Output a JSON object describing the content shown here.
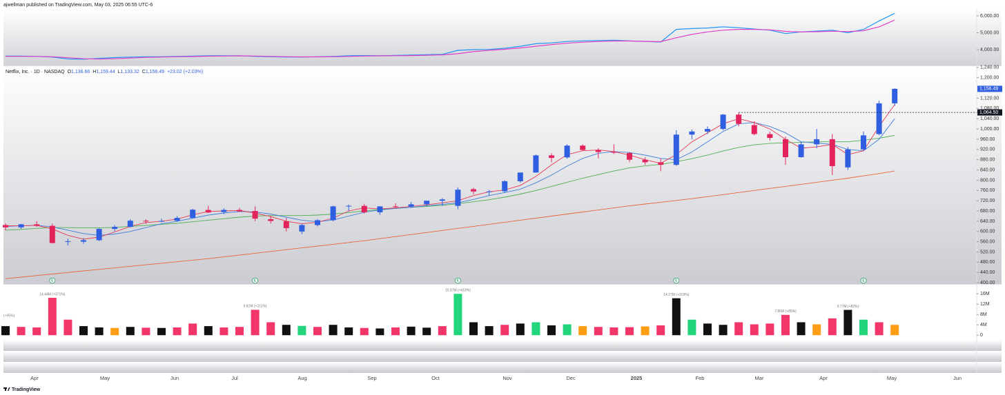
{
  "header": {
    "publisher": "ajwellman published on TradingView.com, May 03, 2025 06:55 UTC-6"
  },
  "footer": {
    "brand": "TradingView"
  },
  "time_axis": [
    "Apr",
    "May",
    "Jun",
    "Jul",
    "Aug",
    "Sep",
    "Oct",
    "Nov",
    "Dec",
    "2025",
    "Feb",
    "Mar",
    "Apr",
    "May",
    "Jun"
  ],
  "chart_data": [
    {
      "type": "line",
      "ylim": [
        3060,
        6450
      ],
      "yticks": [
        {
          "value": 4000,
          "label": "4,000.00"
        },
        {
          "value": 5000,
          "label": "5,000.00"
        },
        {
          "value": 6000,
          "label": "6,000.00"
        }
      ],
      "series": [
        {
          "color": "#2196f3",
          "values": [
            3620,
            3620,
            3600,
            3560,
            3450,
            3430,
            3480,
            3530,
            3560,
            3580,
            3580,
            3600,
            3620,
            3640,
            3640,
            3640,
            3600,
            3580,
            3560,
            3560,
            3580,
            3600,
            3640,
            3650,
            3640,
            3660,
            3680,
            3700,
            3720,
            3960,
            4000,
            4010,
            4080,
            4200,
            4350,
            4400,
            4480,
            4520,
            4540,
            4560,
            4520,
            4480,
            4450,
            5200,
            5250,
            5280,
            5350,
            5300,
            5220,
            5150,
            4950,
            5050,
            5100,
            5150,
            5000,
            5200,
            5700,
            6150
          ]
        },
        {
          "color": "#e040c8",
          "values": [
            3600,
            3600,
            3600,
            3580,
            3520,
            3460,
            3440,
            3460,
            3500,
            3540,
            3560,
            3580,
            3590,
            3610,
            3620,
            3630,
            3620,
            3600,
            3580,
            3570,
            3570,
            3580,
            3600,
            3620,
            3630,
            3640,
            3650,
            3670,
            3690,
            3760,
            3880,
            3960,
            4020,
            4100,
            4200,
            4300,
            4380,
            4440,
            4480,
            4510,
            4510,
            4490,
            4470,
            4700,
            4900,
            5050,
            5150,
            5200,
            5200,
            5170,
            5080,
            5050,
            5060,
            5090,
            5070,
            5120,
            5350,
            5750
          ]
        }
      ]
    },
    {
      "type": "candlestick",
      "legend": {
        "name": "Netflix, Inc. · 1D · NASDAQ",
        "items": [
          {
            "label": "O",
            "value": "1,136.66"
          },
          {
            "label": "H",
            "value": "1,159.44"
          },
          {
            "label": "L",
            "value": "1,133.32"
          },
          {
            "label": "C",
            "value": "1,156.49"
          }
        ],
        "change": "+23.02 (+2.03%)"
      },
      "up_color": "#2f5fe0",
      "down_color": "#e3245c",
      "ylim": [
        395,
        1245
      ],
      "yticks": [
        {
          "value": 400,
          "label": "400.00"
        },
        {
          "value": 440,
          "label": "440.00"
        },
        {
          "value": 480,
          "label": "480.00"
        },
        {
          "value": 520,
          "label": "520.00"
        },
        {
          "value": 560,
          "label": "560.00"
        },
        {
          "value": 600,
          "label": "600.00"
        },
        {
          "value": 640,
          "label": "640.00"
        },
        {
          "value": 680,
          "label": "680.00"
        },
        {
          "value": 720,
          "label": "720.00"
        },
        {
          "value": 760,
          "label": "760.00"
        },
        {
          "value": 800,
          "label": "800.00"
        },
        {
          "value": 840,
          "label": "840.00"
        },
        {
          "value": 880,
          "label": "880.00"
        },
        {
          "value": 920,
          "label": "920.00"
        },
        {
          "value": 960,
          "label": "960.00"
        },
        {
          "value": 1000,
          "label": "1,000.00"
        },
        {
          "value": 1040,
          "label": "1,040.00"
        },
        {
          "value": 1080,
          "label": "1,080.00"
        },
        {
          "value": 1120,
          "label": "1,120.00"
        },
        {
          "value": 1200,
          "label": "1,200.00"
        },
        {
          "value": 1240,
          "label": "1,240.00"
        }
      ],
      "open": [
        625,
        616,
        628,
        622,
        560,
        560,
        566,
        610,
        618,
        642,
        640,
        642,
        653,
        684,
        676,
        684,
        680,
        648,
        640,
        600,
        625,
        644,
        698,
        700,
        675,
        698,
        697,
        706,
        720,
        700,
        765,
        756,
        757,
        796,
        830,
        897,
        889,
        935,
        918,
        910,
        906,
        880,
        870,
        860,
        978,
        990,
        1000,
        1056,
        1015,
        980,
        960,
        890,
        940,
        960,
        850,
        920,
        980,
        1100
      ],
      "high": [
        632,
        630,
        640,
        630,
        572,
        574,
        612,
        625,
        648,
        648,
        650,
        660,
        688,
        700,
        690,
        692,
        698,
        660,
        653,
        630,
        648,
        700,
        705,
        708,
        698,
        710,
        715,
        720,
        730,
        772,
        770,
        762,
        800,
        830,
        900,
        905,
        940,
        940,
        925,
        940,
        910,
        890,
        885,
        995,
        998,
        1010,
        1058,
        1064,
        1030,
        990,
        970,
        950,
        1000,
        980,
        930,
        990,
        1110,
        1159.44
      ],
      "low": [
        605,
        610,
        618,
        553,
        545,
        552,
        563,
        600,
        615,
        630,
        635,
        638,
        652,
        672,
        668,
        676,
        640,
        631,
        600,
        590,
        620,
        640,
        680,
        670,
        665,
        692,
        692,
        700,
        700,
        687,
        745,
        740,
        750,
        790,
        830,
        870,
        884,
        915,
        885,
        902,
        870,
        860,
        835,
        856,
        960,
        980,
        995,
        1010,
        975,
        955,
        860,
        888,
        925,
        820,
        840,
        915,
        975,
        1090
      ],
      "close": [
        616,
        628,
        622,
        555,
        562,
        566,
        610,
        618,
        642,
        641,
        641,
        653,
        685,
        674,
        684,
        678,
        650,
        641,
        613,
        625,
        644,
        698,
        700,
        675,
        698,
        697,
        706,
        720,
        725,
        763,
        756,
        756,
        796,
        830,
        897,
        887,
        935,
        918,
        910,
        909,
        880,
        870,
        860,
        978,
        990,
        1000,
        1056,
        1020,
        980,
        965,
        890,
        940,
        960,
        855,
        920,
        975,
        1100,
        1156.49
      ],
      "lines": [
        {
          "color": "#e8643a",
          "values": [
            416,
            422,
            428,
            434,
            440,
            446,
            452,
            458,
            464,
            470,
            476,
            482,
            488,
            494,
            501,
            508,
            515,
            522,
            529,
            536,
            543,
            550,
            557,
            564,
            572,
            580,
            588,
            596,
            604,
            612,
            620,
            628,
            636,
            644,
            652,
            660,
            668,
            676,
            684,
            692,
            700,
            707,
            714,
            721,
            728,
            736,
            744,
            752,
            760,
            768,
            776,
            784,
            792,
            800,
            808,
            817,
            826,
            836
          ]
        },
        {
          "color": "#4caf50",
          "values": [
            605,
            608,
            612,
            615,
            615,
            614,
            614,
            616,
            620,
            624,
            628,
            632,
            638,
            644,
            650,
            656,
            660,
            662,
            662,
            662,
            664,
            668,
            674,
            680,
            686,
            690,
            694,
            698,
            702,
            708,
            716,
            724,
            734,
            746,
            760,
            776,
            792,
            808,
            822,
            836,
            848,
            856,
            862,
            872,
            884,
            898,
            914,
            928,
            938,
            944,
            946,
            948,
            950,
            950,
            950,
            956,
            964,
            975
          ]
        },
        {
          "color": "#3f7fd9",
          "values": [
            620,
            622,
            624,
            618,
            605,
            592,
            585,
            590,
            600,
            615,
            630,
            640,
            652,
            664,
            672,
            678,
            676,
            668,
            656,
            644,
            638,
            645,
            660,
            675,
            684,
            690,
            694,
            700,
            706,
            712,
            725,
            740,
            752,
            765,
            790,
            820,
            855,
            885,
            905,
            912,
            908,
            898,
            885,
            880,
            910,
            950,
            990,
            1020,
            1025,
            1010,
            985,
            950,
            945,
            940,
            920,
            915,
            960,
            1040
          ]
        },
        {
          "color": "#e53950",
          "values": [
            622,
            622,
            624,
            610,
            585,
            570,
            578,
            598,
            620,
            635,
            640,
            648,
            665,
            678,
            680,
            682,
            672,
            658,
            640,
            630,
            636,
            652,
            680,
            692,
            688,
            692,
            698,
            704,
            712,
            720,
            740,
            755,
            762,
            780,
            815,
            860,
            900,
            915,
            918,
            912,
            898,
            880,
            866,
            900,
            950,
            985,
            1020,
            1040,
            1025,
            1000,
            960,
            925,
            930,
            940,
            900,
            915,
            1010,
            1095
          ]
        }
      ],
      "last_price": {
        "value": 1156.49,
        "label": "1,156.49"
      },
      "price_line": {
        "value": 1064.5,
        "label": "1,064.50"
      },
      "earnings_markers": [
        "E",
        "E",
        "E",
        "E",
        "E"
      ]
    },
    {
      "type": "bar",
      "ylim": [
        -1000000,
        19500000
      ],
      "yticks": [
        0,
        {
          "value": 4000000,
          "label": "4M"
        },
        {
          "value": 8000000,
          "label": "8M"
        },
        {
          "value": 12000000,
          "label": "12M"
        },
        {
          "value": 16000000,
          "label": "16M"
        }
      ],
      "values": [
        3500000,
        3200000,
        3000000,
        14440000,
        6000000,
        3500000,
        3000000,
        2800000,
        3200000,
        2900000,
        2800000,
        3000000,
        4500000,
        3500000,
        3000000,
        3200000,
        9810000,
        5000000,
        4000000,
        3600000,
        3200000,
        4000000,
        3000000,
        2800000,
        2600000,
        3000000,
        3300000,
        2900000,
        3500000,
        15970000,
        5000000,
        3500000,
        4000000,
        4500000,
        5000000,
        3800000,
        4200000,
        3500000,
        3200000,
        3000000,
        3100000,
        3400000,
        3800000,
        14270000,
        6000000,
        4500000,
        4000000,
        5000000,
        4200000,
        4500000,
        7850000,
        5000000,
        4200000,
        6500000,
        9770000,
        6000000,
        5000000,
        4000000
      ],
      "value_labels": [
        null,
        null,
        null,
        "14.44M (+371%)",
        null,
        null,
        null,
        null,
        null,
        null,
        null,
        null,
        null,
        null,
        null,
        null,
        "9.81M (+211%)",
        null,
        null,
        null,
        null,
        null,
        null,
        null,
        null,
        null,
        null,
        null,
        null,
        "15.97M (+418%)",
        null,
        null,
        null,
        null,
        null,
        null,
        null,
        null,
        null,
        null,
        null,
        null,
        null,
        "14.27M (+319%)",
        null,
        null,
        null,
        null,
        null,
        null,
        "7.85M (+85%)",
        null,
        null,
        null,
        "9.77M (+82%)",
        null,
        null,
        null
      ],
      "colors": [
        "#111111",
        "#f23669",
        "#f23669",
        "#f23669",
        "#f23669",
        "#111111",
        "#111111",
        "#ff9d14",
        "#111111",
        "#f23669",
        "#111111",
        "#f23669",
        "#f23669",
        "#111111",
        "#f23669",
        "#f23669",
        "#f23669",
        "#f23669",
        "#111111",
        "#22d47b",
        "#f23669",
        "#111111",
        "#111111",
        "#f23669",
        "#111111",
        "#f23669",
        "#111111",
        "#111111",
        "#f23669",
        "#22d47b",
        "#111111",
        "#111111",
        "#f23669",
        "#111111",
        "#22d47b",
        "#111111",
        "#22d47b",
        "#ff9d14",
        "#f23669",
        "#f23669",
        "#f23669",
        "#ff9d14",
        "#f23669",
        "#111111",
        "#22d47b",
        "#111111",
        "#111111",
        "#f23669",
        "#f23669",
        "#f23669",
        "#f23669",
        "#111111",
        "#ff9d14",
        "#f23669",
        "#111111",
        "#22d47b",
        "#f23669",
        "#ff9d14"
      ],
      "annotations": [
        "(+95%)"
      ]
    }
  ]
}
